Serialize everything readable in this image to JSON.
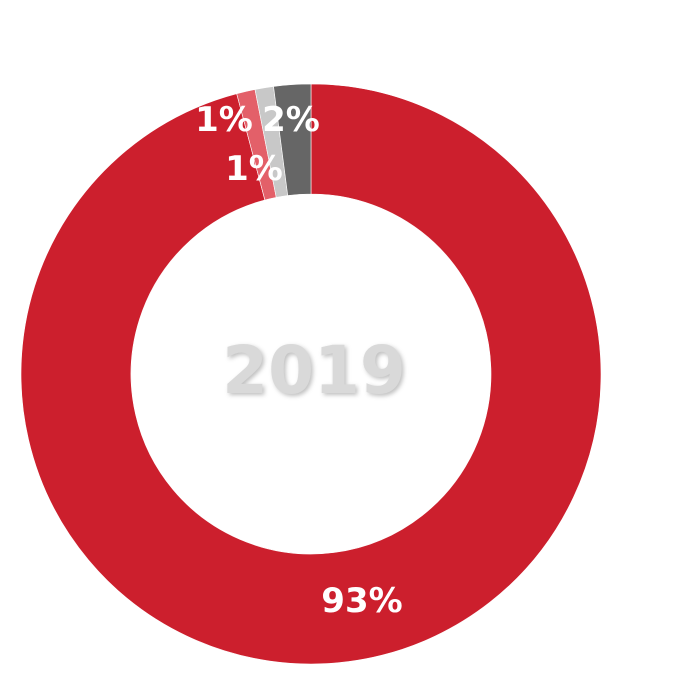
{
  "chart_data": {
    "type": "pie",
    "donut": true,
    "center_label": "2019",
    "slices": [
      {
        "value": 93,
        "label": "93%",
        "color": "#cc1f2d"
      },
      {
        "value": 1,
        "label": "1%",
        "color": "#e36069"
      },
      {
        "value": 1,
        "label": "1%",
        "color": "#c8c8c8"
      },
      {
        "value": 2,
        "label": "2%",
        "color": "#666666"
      }
    ]
  }
}
